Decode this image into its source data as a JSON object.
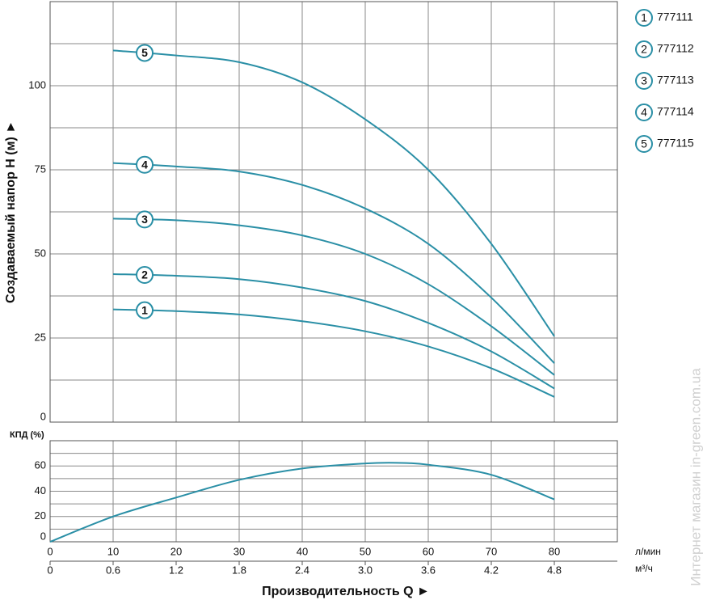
{
  "watermark": "Интернет магазин  in-green.com.ua",
  "chart_data": [
    {
      "type": "line",
      "ylabel": "Создаваемый напор H (м) ►",
      "x": [
        10,
        20,
        30,
        40,
        50,
        60,
        70,
        80
      ],
      "xlim": [
        0,
        90
      ],
      "xgrid": [
        10,
        20,
        30,
        40,
        50,
        60,
        70,
        80
      ],
      "ylim": [
        0,
        125
      ],
      "yticks": [
        0,
        25,
        50,
        75,
        100
      ],
      "minor_yticks": [
        12.5,
        37.5,
        62.5,
        87.5,
        112.5
      ],
      "grid": true,
      "legend": "right",
      "series": [
        {
          "name": "777111",
          "marker": "1",
          "color": "#2a8fa6",
          "values": [
            33.5,
            33,
            32,
            30,
            27,
            22.5,
            16,
            7.5
          ]
        },
        {
          "name": "777112",
          "marker": "2",
          "color": "#2a8fa6",
          "values": [
            44,
            43.5,
            42.5,
            40,
            36,
            29.5,
            21,
            10
          ]
        },
        {
          "name": "777113",
          "marker": "3",
          "color": "#2a8fa6",
          "values": [
            60.5,
            60,
            58.5,
            55.5,
            50,
            41,
            28.5,
            14
          ]
        },
        {
          "name": "777114",
          "marker": "4",
          "color": "#2a8fa6",
          "values": [
            77,
            76,
            74.5,
            70.5,
            63.5,
            53,
            37,
            17.5
          ]
        },
        {
          "name": "777115",
          "marker": "5",
          "color": "#2a8fa6",
          "values": [
            110.5,
            109,
            107,
            101,
            90,
            75,
            53,
            25.5
          ]
        }
      ]
    },
    {
      "type": "line",
      "ylabel": "КПД (%)",
      "xlabel": "Производительность Q ►",
      "x": [
        0,
        10,
        20,
        30,
        40,
        50,
        55,
        60,
        70,
        80
      ],
      "xlim": [
        0,
        90
      ],
      "xticks": [
        0,
        10,
        20,
        30,
        40,
        50,
        60,
        70,
        80
      ],
      "xunit": "л/мин",
      "x2lim": [
        0,
        5.4
      ],
      "x2ticks": [
        0,
        0.6,
        1.2,
        1.8,
        2.4,
        {
          "value": 3,
          "label": "3.0"
        },
        3.6,
        4.2,
        4.8
      ],
      "x2unit": "м³/ч",
      "ylim": [
        0,
        80
      ],
      "yticks": [
        0,
        20,
        40,
        60
      ],
      "minor_yticks": [
        10,
        30,
        50,
        70
      ],
      "grid": true,
      "series": [
        {
          "color": "#2a8fa6",
          "values": [
            0,
            20,
            35,
            49,
            58,
            62,
            62.5,
            61,
            53,
            33.5
          ]
        }
      ]
    }
  ]
}
